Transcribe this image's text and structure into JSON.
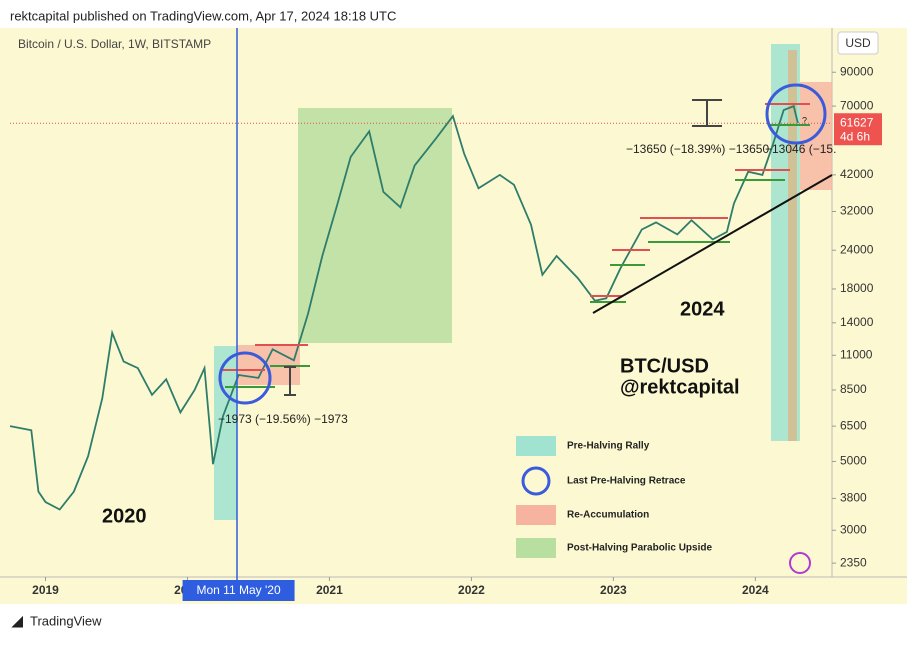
{
  "header": "rektcapital published on TradingView.com, Apr 17, 2024 18:18 UTC",
  "footer": "TradingView",
  "chart_data": {
    "type": "line",
    "title": "Bitcoin / U.S. Dollar, 1W, BITSTAMP",
    "currency": "USD",
    "log_scale": true,
    "color": "#2e7d6b",
    "x": [
      2018.75,
      2018.9,
      2018.95,
      2019.0,
      2019.1,
      2019.2,
      2019.3,
      2019.4,
      2019.47,
      2019.55,
      2019.65,
      2019.75,
      2019.85,
      2019.95,
      2020.05,
      2020.12,
      2020.18,
      2020.25,
      2020.36,
      2020.5,
      2020.6,
      2020.75,
      2020.85,
      2020.95,
      2021.05,
      2021.15,
      2021.28,
      2021.38,
      2021.5,
      2021.6,
      2021.75,
      2021.87,
      2021.95,
      2022.05,
      2022.2,
      2022.3,
      2022.42,
      2022.5,
      2022.6,
      2022.75,
      2022.87,
      2022.95,
      2023.05,
      2023.2,
      2023.3,
      2023.45,
      2023.55,
      2023.7,
      2023.8,
      2023.85,
      2023.95,
      2024.05,
      2024.12,
      2024.2,
      2024.27,
      2024.3
    ],
    "values": [
      6500,
      6300,
      4000,
      3700,
      3500,
      4000,
      5200,
      8000,
      13000,
      10500,
      10000,
      8200,
      9200,
      7200,
      8500,
      10000,
      4900,
      7000,
      9500,
      9300,
      11500,
      10600,
      15000,
      23000,
      33000,
      48000,
      58000,
      37000,
      33000,
      45000,
      55000,
      65000,
      49000,
      38000,
      42000,
      39000,
      29000,
      20000,
      23000,
      19500,
      16500,
      16800,
      21000,
      28000,
      29500,
      27000,
      30000,
      26000,
      27500,
      34000,
      43000,
      42000,
      52000,
      68000,
      70000,
      61627
    ],
    "last_price": 61627,
    "countdown": "4d 6h",
    "xlim": [
      2018.75,
      2024.54
    ],
    "xticks": [
      2019,
      2020,
      2021,
      2022,
      2023,
      2024
    ],
    "ylim": [
      2120,
      125000
    ],
    "yticks": [
      2350,
      3000,
      3800,
      5000,
      6500,
      8500,
      11000,
      14000,
      18000,
      24000,
      32000,
      42000,
      70000,
      90000
    ],
    "crosshair_label": "Mon 11 May '20",
    "annotations": [
      "2020",
      "2024",
      "BTC/USD",
      "@rektcapital",
      "−1973 (−19.56%) −1973",
      "−13650 (−18.39%) −13650",
      "−13046 (−15.",
      "?"
    ],
    "legend": [
      "Pre-Halving Rally",
      "Last Pre-Halving Retrace",
      "Re-Accumulation",
      "Post-Halving Parabolic Upside"
    ]
  }
}
